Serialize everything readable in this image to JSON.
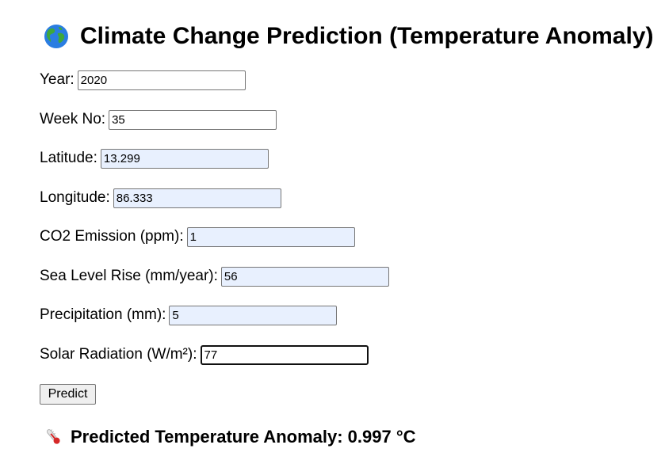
{
  "header": {
    "title": "Climate Change Prediction (Temperature Anomaly)",
    "icon": "globe-icon"
  },
  "form": {
    "fields": [
      {
        "label": "Year:",
        "value": "2020"
      },
      {
        "label": "Week No:",
        "value": "35"
      },
      {
        "label": "Latitude:",
        "value": "13.299"
      },
      {
        "label": "Longitude:",
        "value": "86.333"
      },
      {
        "label": "CO2 Emission (ppm):",
        "value": "1"
      },
      {
        "label": "Sea Level Rise (mm/year):",
        "value": "56"
      },
      {
        "label": "Precipitation (mm):",
        "value": "5"
      },
      {
        "label": "Solar Radiation (W/m²):",
        "value": "77"
      }
    ],
    "submit_label": "Predict"
  },
  "result": {
    "text": "Predicted Temperature Anomaly: 0.997 °C",
    "icon": "thermometer-icon"
  },
  "colors": {
    "autofill_background": "#e8f0fe",
    "button_background": "#efefef",
    "border": "#767676"
  }
}
